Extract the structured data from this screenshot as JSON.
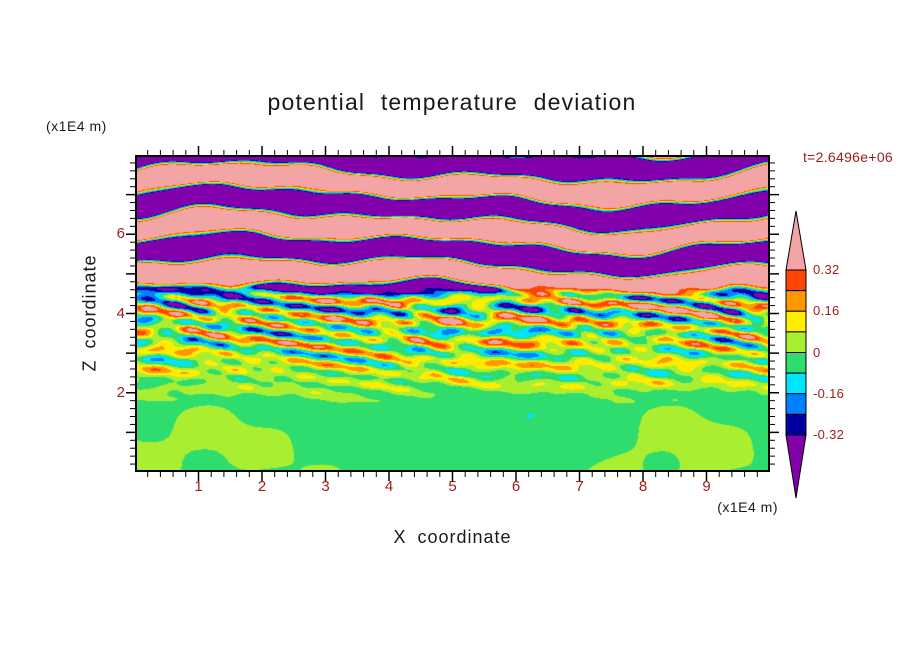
{
  "chart_data": {
    "type": "heatmap",
    "title": "potential temperature deviation",
    "xlabel": "X coordinate",
    "ylabel": "Z coordinate",
    "x_unit": "(x1E4 m)",
    "y_unit": "(x1E4 m)",
    "time_label": "t=2.6496e+06",
    "xlim": [
      0,
      10
    ],
    "ylim": [
      0,
      8
    ],
    "x_ticks": [
      1,
      2,
      3,
      4,
      5,
      6,
      7,
      8,
      9
    ],
    "y_ticks": [
      2,
      4,
      6
    ],
    "minor_tick_step": 0.2,
    "numeral_color": "#a02018",
    "label_color": "#1a1a1a",
    "legend_position": "right",
    "grid": false,
    "colorbar": {
      "levels": [
        -0.32,
        -0.24,
        -0.16,
        -0.08,
        0,
        0.08,
        0.16,
        0.24,
        0.32
      ],
      "tick_labels": [
        "0.32",
        "0.16",
        "0",
        "-0.16",
        "-0.32"
      ],
      "tick_values": [
        0.32,
        0.16,
        0,
        -0.16,
        -0.32
      ],
      "colors": [
        "#8300ad",
        "#0000a0",
        "#0082ff",
        "#00e4ff",
        "#2edd6e",
        "#a9ee30",
        "#ffed00",
        "#ff9800",
        "#ff4400",
        "#f3a5a5"
      ]
    },
    "field_structure": {
      "description": "stratified gravity-wave bands aloft with |deviation|>0.32 (pink/purple layers), turbulent mid-level layer of fine streaks (red/yellow/cyan/navy), weak near-zero green deviations below z=2x1E4 m",
      "wave_zone_z": [
        4.5,
        8
      ],
      "wave_amplitude": 0.55,
      "wave_vertical_wavelength": 1.18,
      "turbulent_zone_z": [
        2.2,
        4.5
      ],
      "turbulent_amplitude_max": 0.36,
      "calm_zone_z": [
        0,
        2.2
      ],
      "calm_mean": -0.02
    }
  }
}
